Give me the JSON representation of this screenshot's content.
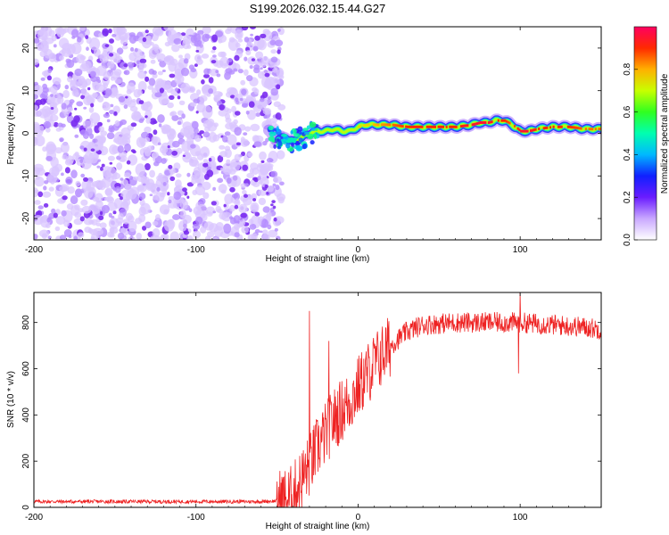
{
  "title": "S199.2026.032.15.44.G27",
  "chart_data": [
    {
      "type": "heatmap",
      "name": "spectrogram",
      "xlabel": "Height of straight line (km)",
      "ylabel": "Frequency (Hz)",
      "xlim": [
        -200,
        150
      ],
      "ylim": [
        -25,
        25
      ],
      "xticks": [
        -200,
        -100,
        0,
        100
      ],
      "yticks": [
        -20,
        -10,
        0,
        10,
        20
      ],
      "noise_region_x": [
        -200,
        -50
      ],
      "signal_track": {
        "x": [
          -55,
          -50,
          -45,
          -40,
          -35,
          -30,
          -25,
          -20,
          -15,
          -10,
          -5,
          0,
          5,
          10,
          20,
          30,
          40,
          50,
          60,
          70,
          75,
          80,
          85,
          90,
          95,
          100,
          105,
          110,
          120,
          130,
          140,
          150
        ],
        "freq": [
          0.5,
          -1.5,
          -1,
          -2,
          -1,
          0,
          0.5,
          0.5,
          1,
          0.5,
          0.5,
          1.5,
          2,
          2,
          2,
          1.5,
          1.5,
          1.5,
          1.5,
          2,
          2.5,
          2.5,
          3,
          3,
          2,
          0.5,
          0.5,
          1,
          1.5,
          1.5,
          1,
          1
        ],
        "amplitude": [
          0.3,
          0.35,
          0.35,
          0.4,
          0.4,
          0.45,
          0.5,
          0.55,
          0.6,
          0.55,
          0.6,
          0.7,
          0.7,
          0.75,
          0.8,
          0.85,
          0.85,
          0.85,
          0.85,
          0.9,
          0.9,
          0.9,
          0.85,
          0.85,
          0.8,
          0.9,
          0.9,
          0.85,
          0.85,
          0.85,
          0.8,
          0.8
        ]
      },
      "colorbar": {
        "label": "Normalized spectral amplitude",
        "range": [
          0,
          1
        ],
        "ticks": [
          "0.0",
          "0.2",
          "0.4",
          "0.6",
          "0.8"
        ],
        "colormap": "rainbow"
      }
    },
    {
      "type": "line",
      "name": "snr",
      "xlabel": "Height of straight line (km)",
      "ylabel": "SNR (10 * v/v)",
      "xlim": [
        -200,
        150
      ],
      "ylim": [
        0,
        930
      ],
      "xticks": [
        -200,
        -100,
        0,
        100
      ],
      "yticks": [
        0,
        200,
        400,
        600,
        800
      ],
      "color": "#ee2222",
      "envelope": {
        "x": [
          -200,
          -60,
          -50,
          -42,
          -38,
          -35,
          -30,
          -25,
          -20,
          -15,
          -10,
          -5,
          0,
          5,
          10,
          20,
          30,
          40,
          60,
          80,
          100,
          120,
          140,
          150
        ],
        "y": [
          25,
          25,
          28,
          40,
          80,
          120,
          180,
          260,
          320,
          380,
          420,
          460,
          520,
          570,
          620,
          700,
          760,
          790,
          800,
          800,
          800,
          790,
          780,
          770
        ]
      },
      "spikes": [
        {
          "x": -30,
          "y": 850
        },
        {
          "x": -18,
          "y": 720
        },
        {
          "x": 100,
          "y": 930
        },
        {
          "x": 99,
          "y": 580
        }
      ]
    }
  ]
}
